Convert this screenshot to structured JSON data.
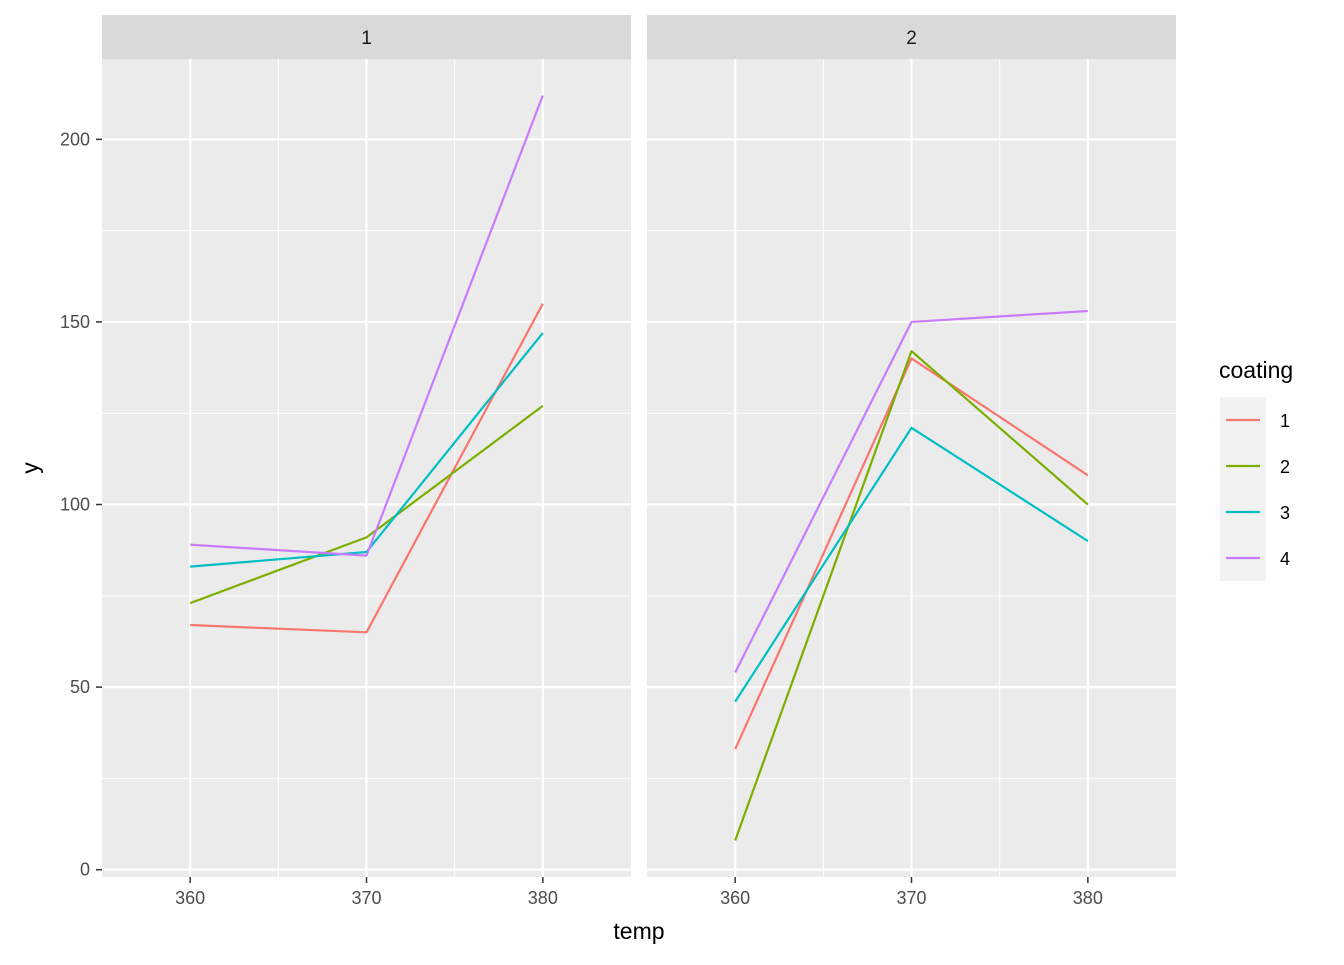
{
  "chart_data": {
    "type": "line",
    "xlabel": "temp",
    "ylabel": "y",
    "xlim": [
      355,
      385
    ],
    "ylim": [
      -2,
      222
    ],
    "x_ticks": [
      360,
      370,
      380
    ],
    "y_ticks": [
      0,
      50,
      100,
      150,
      200
    ],
    "grid": true,
    "legend": {
      "title": "coating",
      "position": "right",
      "entries": [
        "1",
        "2",
        "3",
        "4"
      ]
    },
    "colors": {
      "1": "#F8766D",
      "2": "#7CAE00",
      "3": "#00BFC4",
      "4": "#C77CFF"
    },
    "panels": [
      {
        "label": "1",
        "x": [
          360,
          370,
          380
        ],
        "series": [
          {
            "name": "1",
            "values": [
              67,
              65,
              155
            ]
          },
          {
            "name": "2",
            "values": [
              73,
              91,
              127
            ]
          },
          {
            "name": "3",
            "values": [
              83,
              87,
              147
            ]
          },
          {
            "name": "4",
            "values": [
              89,
              86,
              212
            ]
          }
        ]
      },
      {
        "label": "2",
        "x": [
          360,
          370,
          380
        ],
        "series": [
          {
            "name": "1",
            "values": [
              33,
              140,
              108
            ]
          },
          {
            "name": "2",
            "values": [
              8,
              142,
              100
            ]
          },
          {
            "name": "3",
            "values": [
              46,
              121,
              90
            ]
          },
          {
            "name": "4",
            "values": [
              54,
              150,
              153
            ]
          }
        ]
      }
    ]
  }
}
